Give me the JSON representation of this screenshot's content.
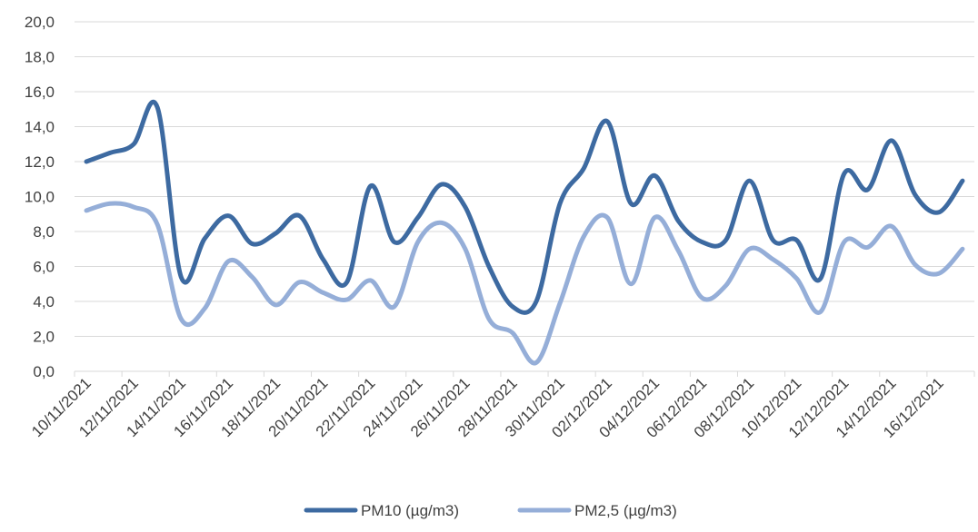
{
  "chart_data": {
    "type": "line",
    "title": "",
    "xlabel": "",
    "ylabel": "",
    "ylim": [
      0,
      20
    ],
    "y_ticks": [
      "0,0",
      "2,0",
      "4,0",
      "6,0",
      "8,0",
      "10,0",
      "12,0",
      "14,0",
      "16,0",
      "18,0",
      "20,0"
    ],
    "grid": "horizontal",
    "legend_position": "bottom",
    "x": [
      "10/11/2021",
      "11/11/2021",
      "12/11/2021",
      "13/11/2021",
      "14/11/2021",
      "15/11/2021",
      "16/11/2021",
      "17/11/2021",
      "18/11/2021",
      "19/11/2021",
      "20/11/2021",
      "21/11/2021",
      "22/11/2021",
      "23/11/2021",
      "24/11/2021",
      "25/11/2021",
      "26/11/2021",
      "27/11/2021",
      "28/11/2021",
      "29/11/2021",
      "30/11/2021",
      "01/12/2021",
      "02/12/2021",
      "03/12/2021",
      "04/12/2021",
      "05/12/2021",
      "06/12/2021",
      "07/12/2021",
      "08/12/2021",
      "09/12/2021",
      "10/12/2021",
      "11/12/2021",
      "12/12/2021",
      "13/12/2021",
      "14/12/2021",
      "15/12/2021",
      "16/12/2021",
      "17/12/2021"
    ],
    "x_tick_labels": [
      "10/11/2021",
      "12/11/2021",
      "14/11/2021",
      "16/11/2021",
      "18/11/2021",
      "20/11/2021",
      "22/11/2021",
      "24/11/2021",
      "26/11/2021",
      "28/11/2021",
      "30/11/2021",
      "02/12/2021",
      "04/12/2021",
      "06/12/2021",
      "08/12/2021",
      "10/12/2021",
      "12/12/2021",
      "14/12/2021",
      "16/12/2021"
    ],
    "series": [
      {
        "name": "PM10 (µg/m3)",
        "color": "#3d6aa1",
        "values": [
          12.0,
          12.5,
          13.0,
          15.1,
          5.4,
          7.6,
          8.9,
          7.3,
          7.9,
          8.9,
          6.4,
          5.1,
          10.6,
          7.4,
          8.8,
          10.7,
          9.4,
          6.0,
          3.7,
          4.0,
          9.6,
          11.6,
          14.3,
          9.6,
          11.2,
          8.6,
          7.4,
          7.5,
          10.9,
          7.5,
          7.5,
          5.3,
          11.3,
          10.4,
          13.2,
          10.1,
          9.1,
          10.9
        ]
      },
      {
        "name": "PM2,5 (µg/m3)",
        "color": "#95aed8",
        "values": [
          9.2,
          9.6,
          9.4,
          8.4,
          3.0,
          3.6,
          6.3,
          5.4,
          3.8,
          5.1,
          4.5,
          4.1,
          5.2,
          3.7,
          7.4,
          8.5,
          7.0,
          3.0,
          2.2,
          0.5,
          3.9,
          7.7,
          8.8,
          5.0,
          8.8,
          6.9,
          4.2,
          4.9,
          7.0,
          6.4,
          5.3,
          3.4,
          7.4,
          7.1,
          8.3,
          6.1,
          5.6,
          7.0
        ]
      }
    ]
  }
}
